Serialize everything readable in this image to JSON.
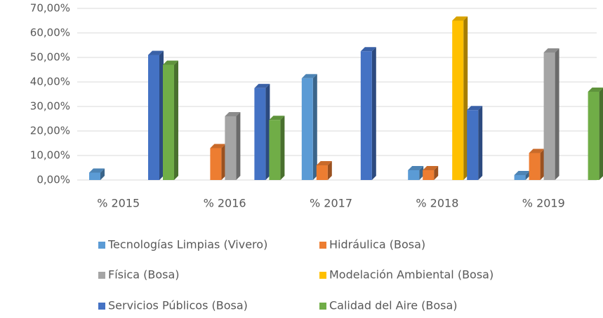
{
  "chart_data": {
    "type": "bar3d",
    "categories": [
      "% 2015",
      "% 2016",
      "% 2017",
      "% 2018",
      "% 2019"
    ],
    "series": [
      {
        "name": "Tecnologías Limpias (Vivero)",
        "color": "#5b9bd5",
        "values": [
          3,
          null,
          41.5,
          4,
          2
        ]
      },
      {
        "name": "Hidráulica (Bosa)",
        "color": "#ed7d31",
        "values": [
          null,
          13,
          6,
          4,
          11
        ]
      },
      {
        "name": "Física (Bosa)",
        "color": "#a5a5a5",
        "values": [
          null,
          26,
          null,
          null,
          52
        ]
      },
      {
        "name": "Modelación Ambiental (Bosa)",
        "color": "#ffc000",
        "values": [
          null,
          null,
          null,
          65,
          null
        ]
      },
      {
        "name": "Servicios Públicos (Bosa)",
        "color": "#4472c4",
        "values": [
          51,
          37.5,
          52.5,
          28.5,
          null
        ]
      },
      {
        "name": "Calidad del Aire (Bosa)",
        "color": "#70ad47",
        "values": [
          47,
          24.5,
          null,
          null,
          36
        ]
      }
    ],
    "ylim": [
      0,
      70
    ],
    "yticks": [
      {
        "value": 0,
        "label": "0,00%"
      },
      {
        "value": 10,
        "label": "10,00%"
      },
      {
        "value": 20,
        "label": "20,00%"
      },
      {
        "value": 30,
        "label": "30,00%"
      },
      {
        "value": 40,
        "label": "40,00%"
      },
      {
        "value": 50,
        "label": "50,00%"
      },
      {
        "value": 60,
        "label": "60,00%"
      },
      {
        "value": 70,
        "label": "70,00%"
      }
    ],
    "grid": true,
    "legend": "bottom"
  }
}
